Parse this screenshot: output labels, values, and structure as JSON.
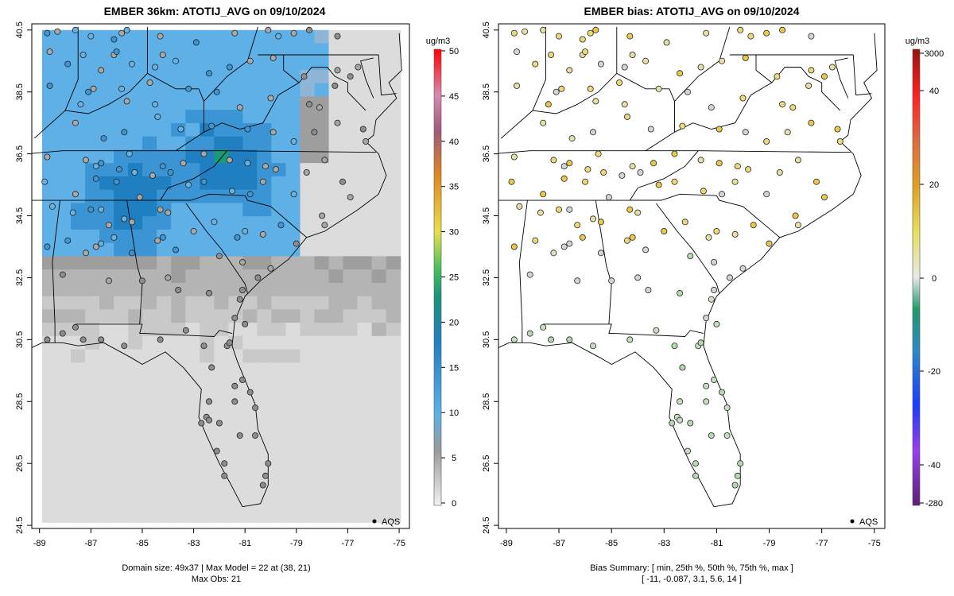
{
  "left_panel": {
    "title": "EMBER 36km: ATOTIJ_AVG on 09/10/2024",
    "colorbar_unit": "ug/m3",
    "colorbar_ticks": [
      "0",
      "5",
      "10",
      "15",
      "20",
      "25",
      "30",
      "35",
      "40",
      "45",
      "50"
    ],
    "colorbar_range": [
      0,
      50
    ],
    "legend_label": "AQS",
    "footer_line1": "Domain size: 49x37 | Max Model = 22 at (38, 21)",
    "footer_line2": "Max Obs: 21"
  },
  "right_panel": {
    "title": "EMBER bias: ATOTIJ_AVG on 09/10/2024",
    "colorbar_unit": "ug/m3",
    "colorbar_ticks": [
      "-280",
      "-40",
      "-20",
      "0",
      "20",
      "40",
      "3000"
    ],
    "legend_label": "AQS",
    "footer_line1": "Bias Summary: [ min, 25th %, 50th %, 75th %, max ]",
    "footer_line2": "[ -11,   -0.087,   3.1,   5.6,   14 ]"
  },
  "axes": {
    "lon_ticks": [
      "-89",
      "-87",
      "-85",
      "-83",
      "-81",
      "-79",
      "-77",
      "-75"
    ],
    "lat_ticks": [
      "24.5",
      "26.5",
      "28.5",
      "30.5",
      "32.5",
      "34.5",
      "36.5",
      "38.5",
      "40.5"
    ],
    "lon_range": [
      -89.3,
      -74.6
    ],
    "lat_range": [
      24.5,
      40.7
    ]
  },
  "colors": {
    "model_low": "#dcdcdc",
    "model_mid": "#9e9e9e",
    "model_blue": "#5fb0e6",
    "model_deep": "#1f7fc0",
    "model_green": "#1a9a78",
    "bias_neg": "#b5d8b0",
    "bias_zero": "#d4d4d4",
    "bias_pos": "#e8c94a"
  }
}
